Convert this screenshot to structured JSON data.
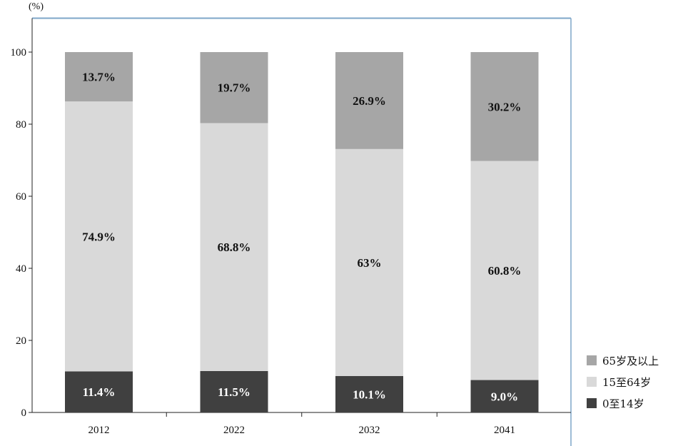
{
  "chart_data": {
    "type": "bar",
    "stacked": true,
    "y_unit_label": "(%)",
    "ylim": [
      0,
      110
    ],
    "yticks": [
      0,
      20,
      40,
      60,
      80,
      100
    ],
    "categories": [
      "2012",
      "2022",
      "2032",
      "2041"
    ],
    "series": [
      {
        "name": "0至14岁",
        "color": "#404040",
        "values": [
          11.4,
          11.5,
          10.1,
          9.0
        ],
        "labels": [
          "11.4%",
          "11.5%",
          "10.1%",
          "9.0%"
        ]
      },
      {
        "name": "15至64岁",
        "color": "#d9d9d9",
        "values": [
          74.9,
          68.8,
          63,
          60.8
        ],
        "labels": [
          "74.9%",
          "68.8%",
          "63%",
          "60.8%"
        ]
      },
      {
        "name": "65岁及以上",
        "color": "#a6a6a6",
        "values": [
          13.7,
          19.7,
          26.9,
          30.2
        ],
        "labels": [
          "13.7%",
          "19.7%",
          "26.9%",
          "30.2%"
        ]
      }
    ],
    "legend_position": "right-bottom",
    "legend_order": [
      "65岁及以上",
      "15至64岁",
      "0至14岁"
    ],
    "grid": false
  }
}
